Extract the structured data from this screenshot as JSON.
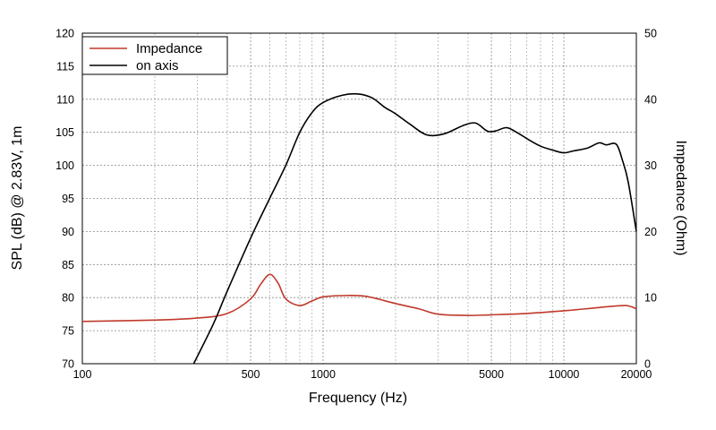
{
  "chart_data": {
    "type": "line",
    "title": "",
    "xlabel": "Frequency (Hz)",
    "ylabel": "SPL (dB) @ 2.83V, 1m",
    "y2label": "Impedance (Ohm)",
    "x_scale": "log",
    "xlim": [
      100,
      20000
    ],
    "ylim": [
      70,
      120
    ],
    "y2lim": [
      0,
      50
    ],
    "grid": true,
    "x_tick_labels": [
      "100",
      "500",
      "1000",
      "5000",
      "10000",
      "20000"
    ],
    "x_tick_values": [
      100,
      500,
      1000,
      5000,
      10000,
      20000
    ],
    "y_tick_values": [
      70,
      75,
      80,
      85,
      90,
      95,
      100,
      105,
      110,
      115,
      120
    ],
    "y2_tick_values": [
      0,
      10,
      20,
      30,
      40,
      50
    ],
    "legend_position": "top-left",
    "series": [
      {
        "name": "Impedance",
        "axis": "right",
        "color": "#c0392b",
        "x": [
          100,
          200,
          300,
          400,
          500,
          550,
          600,
          650,
          700,
          800,
          900,
          1000,
          1200,
          1500,
          2000,
          2500,
          3000,
          4000,
          5000,
          7000,
          10000,
          14000,
          18000,
          20000
        ],
        "y": [
          6.4,
          6.6,
          6.9,
          7.6,
          9.8,
          12.0,
          13.5,
          12.2,
          9.8,
          8.8,
          9.5,
          10.1,
          10.3,
          10.2,
          9.1,
          8.3,
          7.5,
          7.3,
          7.4,
          7.6,
          8.0,
          8.5,
          8.8,
          8.3
        ]
      },
      {
        "name": "on axis",
        "axis": "left",
        "color": "#000000",
        "x": [
          290,
          350,
          400,
          500,
          600,
          700,
          800,
          900,
          1000,
          1200,
          1400,
          1600,
          1800,
          2000,
          2300,
          2700,
          3200,
          3800,
          4300,
          4800,
          5200,
          5800,
          6500,
          7200,
          8000,
          9000,
          10000,
          11000,
          12500,
          14000,
          15000,
          16500,
          17500,
          18500,
          20000
        ],
        "y": [
          70,
          76,
          81,
          89,
          95,
          100,
          105,
          108,
          109.5,
          110.6,
          110.8,
          110.2,
          108.8,
          107.8,
          106.2,
          104.6,
          104.8,
          106.0,
          106.4,
          105.2,
          105.2,
          105.7,
          104.8,
          103.8,
          102.9,
          102.3,
          101.9,
          102.2,
          102.6,
          103.4,
          103.1,
          103.2,
          100.8,
          97.5,
          90.0
        ]
      }
    ]
  }
}
